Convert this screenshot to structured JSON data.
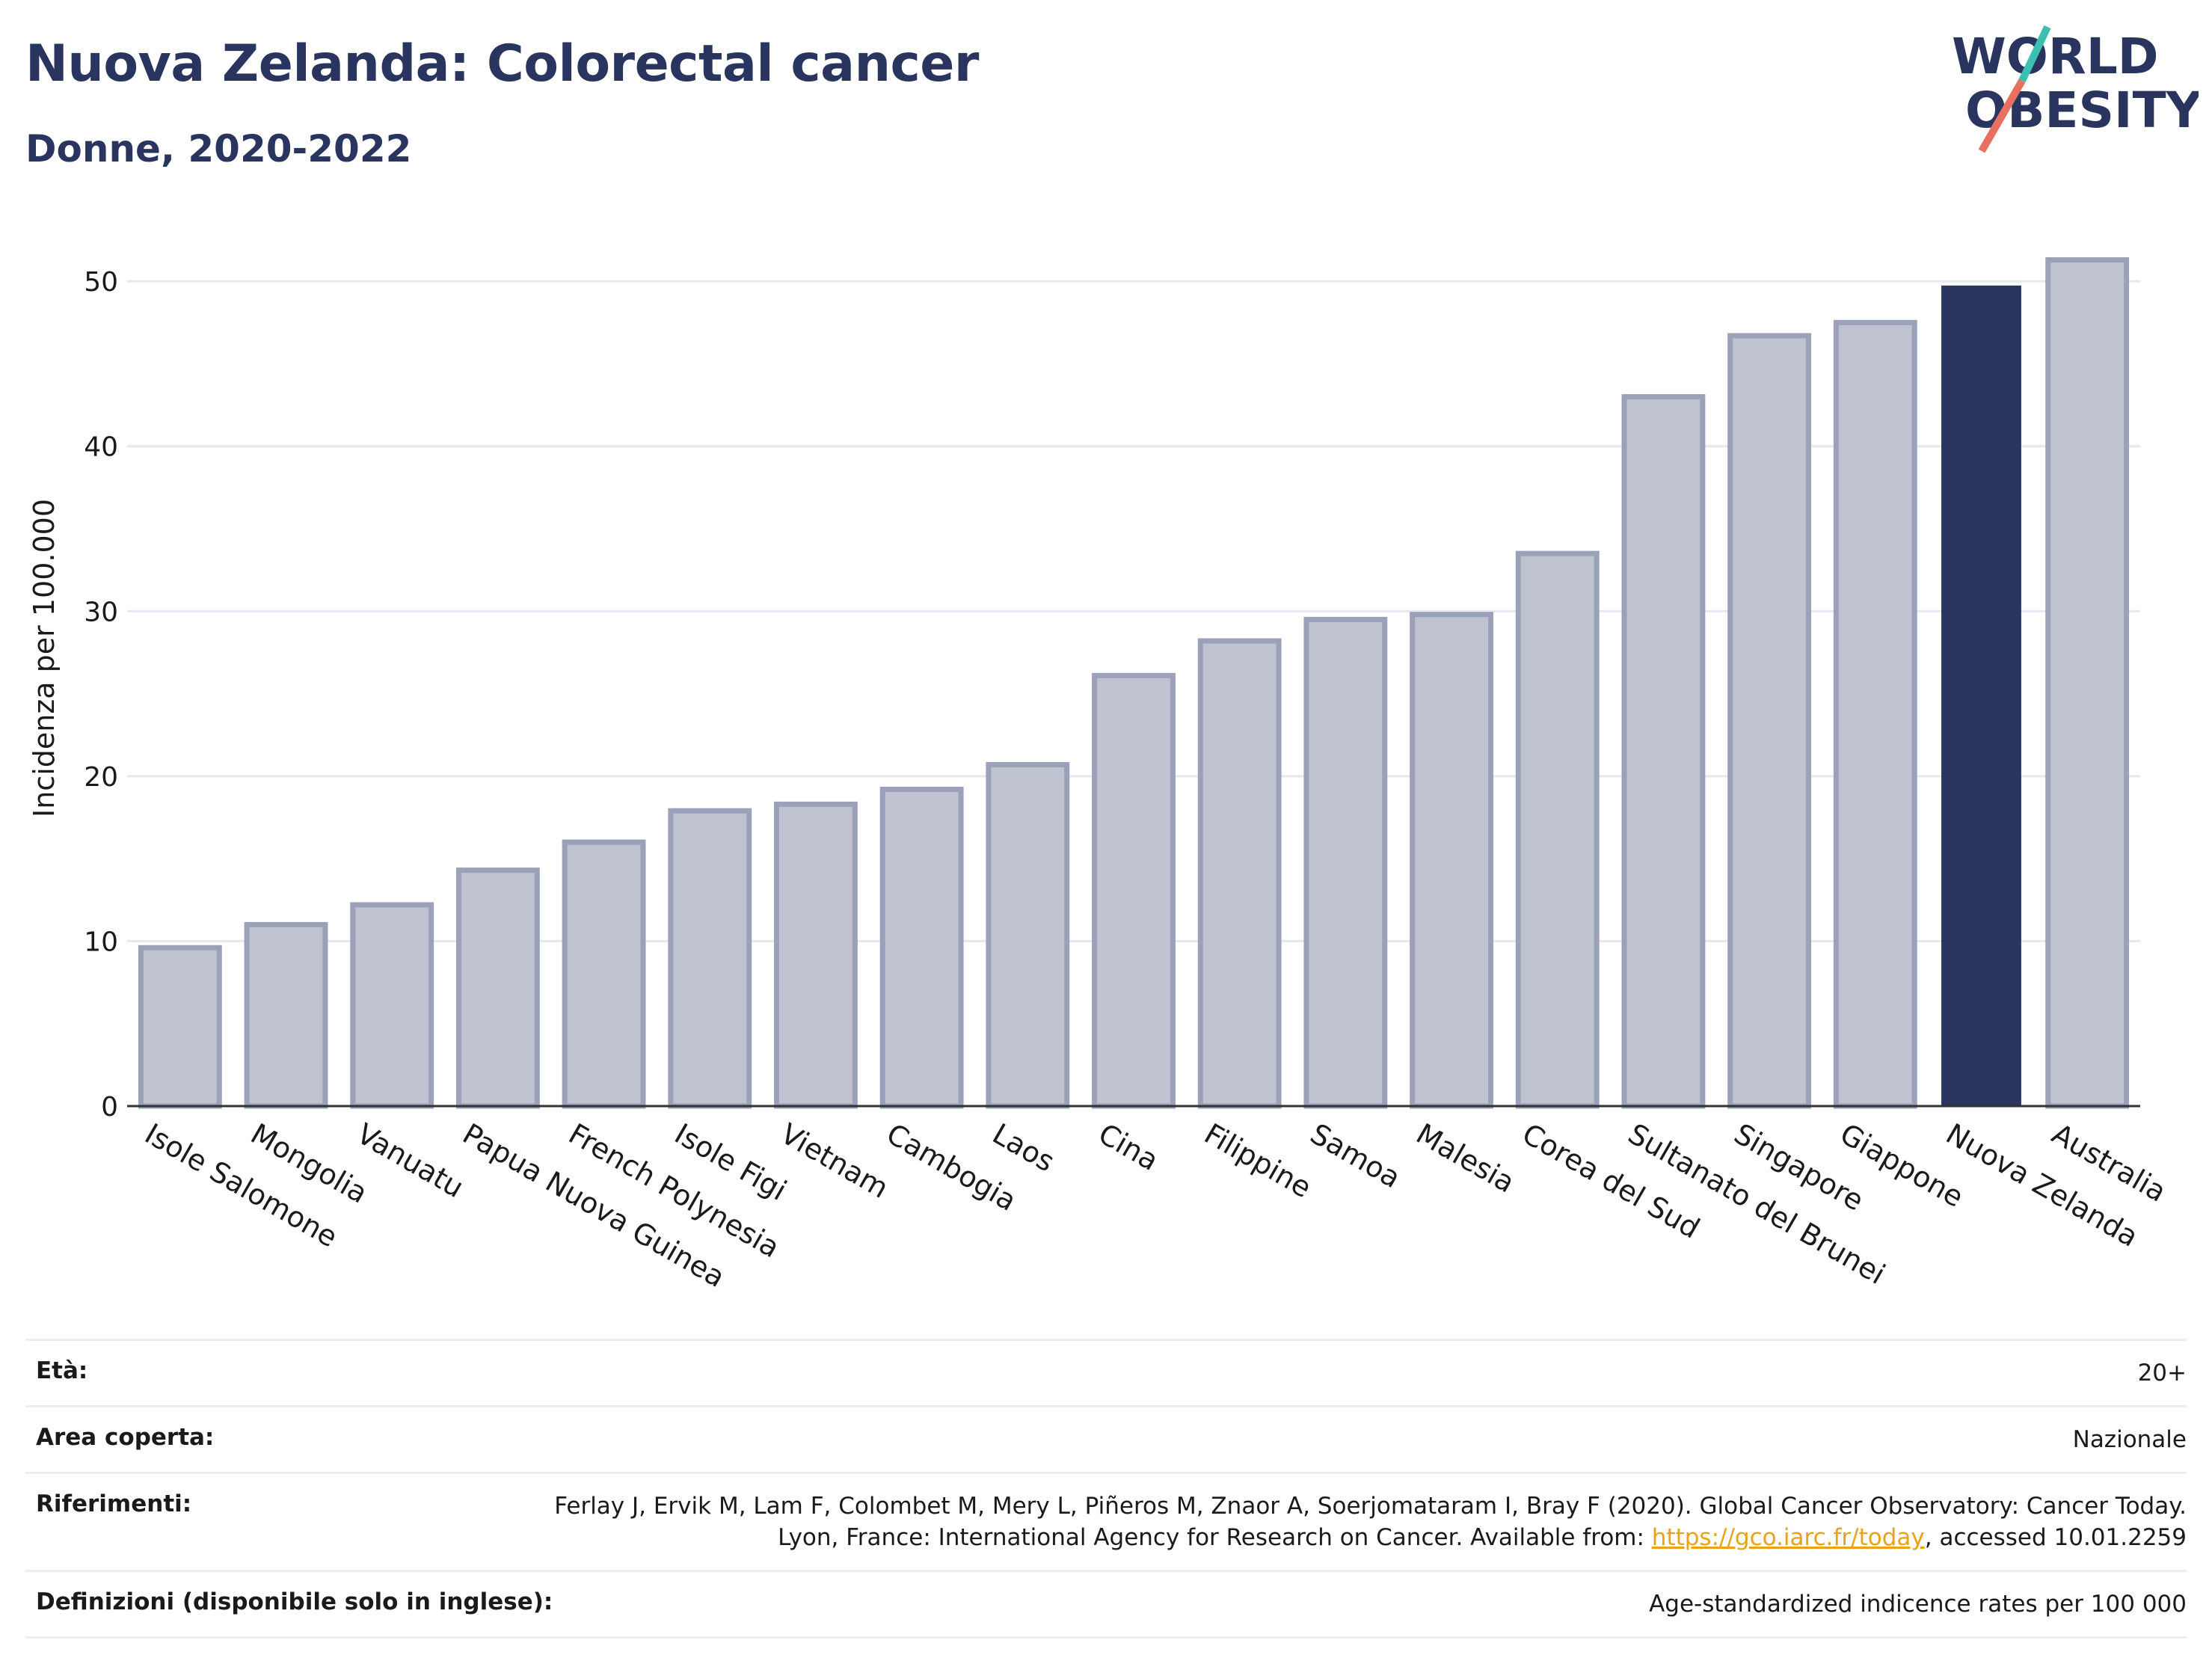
{
  "header": {
    "title": "Nuova Zelanda: Colorectal cancer",
    "subtitle": "Donne, 2020-2022"
  },
  "logo": {
    "line1": "WORLD",
    "line2": "OBESITY",
    "name": "world-obesity-logo"
  },
  "colors": {
    "bar": "#bfc3d0",
    "bar_stroke": "#9aa1b8",
    "highlight": "#2a355f",
    "title": "#2a355f",
    "link": "#e8a317"
  },
  "chart_data": {
    "type": "bar",
    "ylabel": "Incidenza per 100.000",
    "ylim": [
      0,
      53
    ],
    "yticks": [
      0,
      10,
      20,
      30,
      40,
      50
    ],
    "grid": true,
    "highlight": "Nuova Zelanda",
    "categories": [
      "Isole Salomone",
      "Mongolia",
      "Vanuatu",
      "Papua Nuova Guinea",
      "French Polynesia",
      "Isole Figi",
      "Vietnam",
      "Cambogia",
      "Laos",
      "Cina",
      "Filippine",
      "Samoa",
      "Malesia",
      "Corea del Sud",
      "Sultanato del Brunei",
      "Singapore",
      "Giappone",
      "Nuova Zelanda",
      "Australia"
    ],
    "values": [
      9.6,
      11.0,
      12.2,
      14.3,
      16.0,
      17.9,
      18.3,
      19.2,
      20.7,
      26.1,
      28.2,
      29.5,
      29.8,
      33.5,
      43.0,
      46.7,
      47.5,
      49.7,
      51.3
    ]
  },
  "meta": [
    {
      "label": "Età:",
      "value": "20+"
    },
    {
      "label": "Area coperta:",
      "value": "Nazionale"
    },
    {
      "label": "Riferimenti:",
      "value": "Ferlay J, Ervik M, Lam F, Colombet M, Mery L, Piñeros M, Znaor A, Soerjomataram I, Bray F (2020). Global Cancer Observatory: Cancer Today. Lyon, France: International Agency for Research on Cancer. Available from: ",
      "link": "https://gco.iarc.fr/today",
      "suffix": ", accessed 10.01.2259"
    },
    {
      "label": "Definizioni (disponibile solo in inglese):",
      "value": "Age-standardized indicence rates per 100 000"
    }
  ]
}
